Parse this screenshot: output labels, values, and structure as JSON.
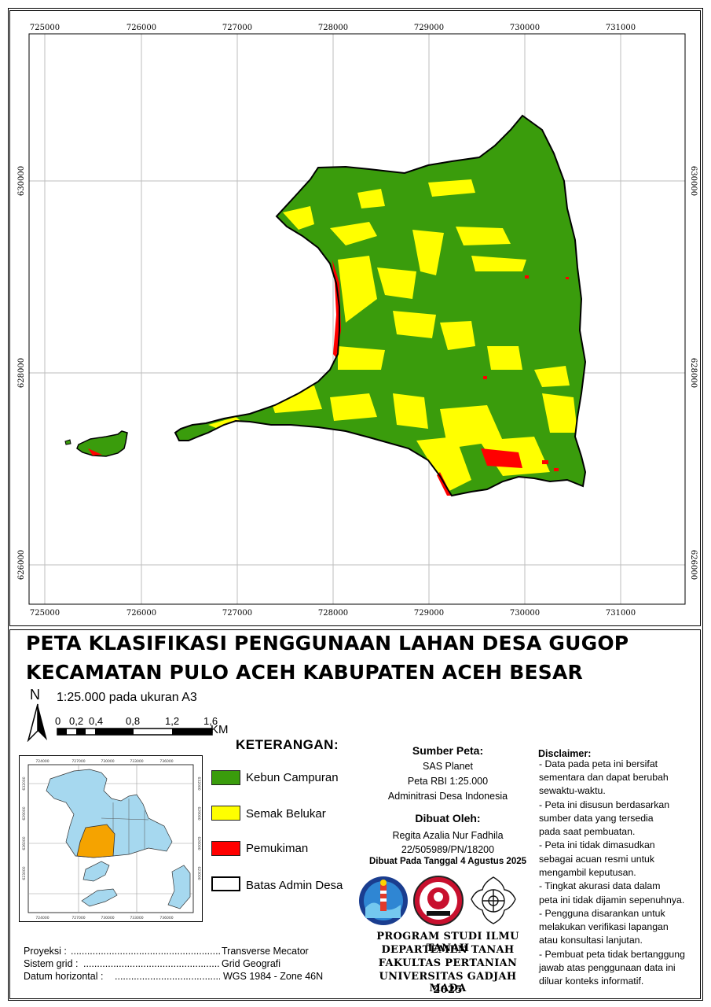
{
  "map": {
    "x_ticks": [
      "725000",
      "726000",
      "727000",
      "728000",
      "729000",
      "730000",
      "731000"
    ],
    "y_ticks": [
      "630000",
      "628000",
      "626000"
    ],
    "colors": {
      "kebun": "#3a9c0c",
      "semak": "#ffff00",
      "pemukiman": "#ff0000",
      "border": "#000000",
      "grid": "#bbbbbb"
    }
  },
  "title": {
    "line1": "PETA KLASIFIKASI PENGGUNAAN LAHAN DESA GUGOP",
    "line2": "KECAMATAN PULO ACEH KABUPATEN ACEH BESAR"
  },
  "north": {
    "letter": "N",
    "icon": "north-arrow-icon"
  },
  "scale": {
    "text": "1:25.000 pada ukuran A3",
    "labels": [
      "0",
      "0,2",
      "0,4",
      "0,8",
      "1,2",
      "1,6"
    ],
    "unit": "KM"
  },
  "inset": {
    "x_ticks": [
      "724000",
      "727000",
      "730000",
      "733000",
      "736000"
    ],
    "y_ticks": [
      "632000",
      "629000",
      "626000",
      "623000"
    ],
    "colors": {
      "region": "#a6d8ef",
      "highlight": "#f5a300"
    }
  },
  "legend": {
    "heading": "KETERANGAN:",
    "items": [
      {
        "label": "Kebun Campuran",
        "color": "#3a9c0c"
      },
      {
        "label": "Semak Belukar",
        "color": "#ffff00"
      },
      {
        "label": "Pemukiman",
        "color": "#ff0000"
      },
      {
        "label": "Batas Admin Desa",
        "color": "#ffffff"
      }
    ]
  },
  "sources": {
    "heading": "Sumber Peta:",
    "lines": [
      "SAS Planet",
      "Peta RBI 1:25.000",
      "Adminitrasi Desa Indonesia"
    ]
  },
  "author": {
    "heading": "Dibuat Oleh:",
    "name": "Regita Azalia Nur Fadhila",
    "id": "22/505989/PN/18200",
    "date": "Dibuat Pada Tanggal 4 Agustus 2025"
  },
  "institution": {
    "lines": [
      "PROGRAM STUDI ILMU TANAH",
      "DEPARTEMEN TANAH",
      "FAKULTAS PERTANIAN",
      "UNIVERSITAS GADJAH MADA",
      "2025"
    ],
    "logos": [
      "soil-science-logo-icon",
      "department-logo-icon",
      "ugm-logo-icon"
    ]
  },
  "disclaimer": {
    "heading": "Disclaimer:",
    "lines": [
      "- Data pada peta ini bersifat",
      "sementara dan dapat berubah",
      "sewaktu-waktu.",
      "- Peta ini disusun berdasarkan",
      "sumber data yang tersedia",
      "pada saat pembuatan.",
      "- Peta ini tidak dimasudkan",
      "sebagai acuan resmi untuk",
      "mengambil keputusan.",
      "- Tingkat akurasi data dalam",
      "peta ini tidak dijamin sepenuhnya.",
      "- Pengguna disarankan untuk",
      "melakukan verifikasi lapangan",
      "atau konsultasi lanjutan.",
      "- Pembuat peta tidak bertanggung",
      "jawab atas penggunaan data ini",
      "diluar konteks informatif."
    ]
  },
  "projection": {
    "rows": [
      {
        "label": "Proyeksi  :",
        "value": "Transverse Mecator"
      },
      {
        "label": "Sistem grid :",
        "value": "Grid Geografi"
      },
      {
        "label": "Datum horizontal  :",
        "value": "WGS 1984 - Zone 46N"
      }
    ]
  }
}
